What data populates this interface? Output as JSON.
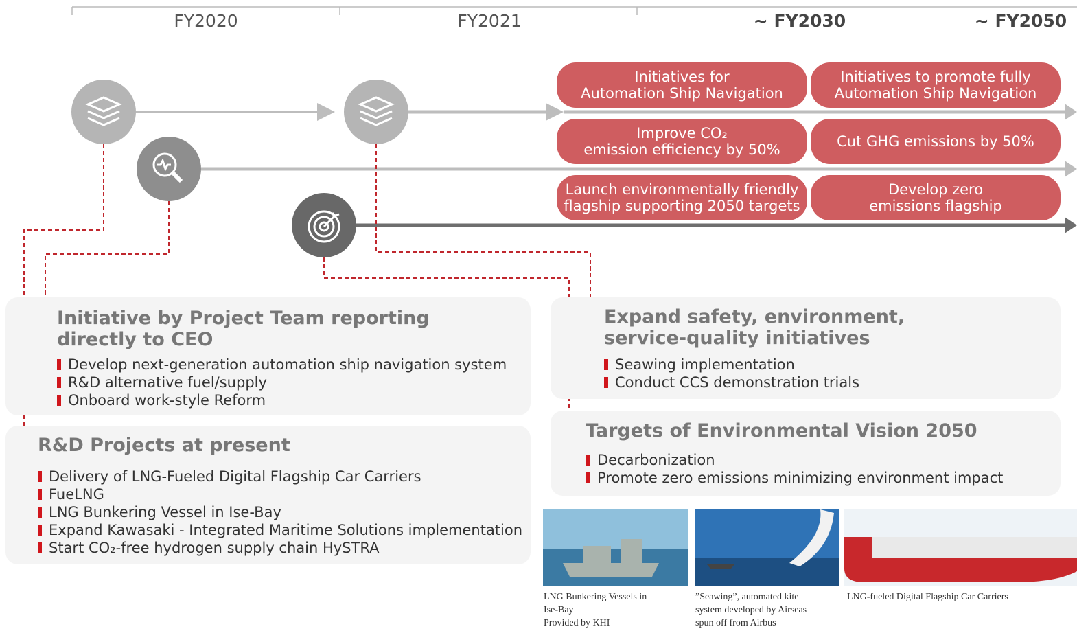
{
  "timeline": [
    "FY2020",
    "FY2021",
    "~ FY2030",
    "~ FY2050"
  ],
  "goals": [
    {
      "lines": [
        "Initiatives for",
        "Automation Ship Navigation"
      ]
    },
    {
      "lines": [
        "Initiatives to promote fully",
        "Automation Ship Navigation"
      ]
    },
    {
      "lines": [
        "Improve CO₂",
        "emission efficiency by 50%"
      ]
    },
    {
      "lines": [
        "Cut GHG emissions by 50%"
      ]
    },
    {
      "lines": [
        "Launch environmentally friendly",
        "flagship supporting 2050 targets"
      ]
    },
    {
      "lines": [
        "Develop zero",
        "emissions flagship"
      ]
    }
  ],
  "panels": [
    {
      "title": [
        "Initiative by Project Team reporting",
        "directly to CEO"
      ],
      "items": [
        "Develop next-generation automation ship navigation system",
        "R&D alternative fuel/supply",
        "Onboard work-style Reform"
      ]
    },
    {
      "title": [
        "R&D Projects at present"
      ],
      "items": [
        "Delivery of LNG-Fueled Digital Flagship Car Carriers",
        "FueLNG",
        "LNG Bunkering Vessel in Ise-Bay",
        "Expand Kawasaki - Integrated Maritime Solutions implementation",
        "Start CO₂-free hydrogen supply chain HySTRA"
      ]
    },
    {
      "title": [
        "Expand safety, environment,",
        "service-quality initiatives"
      ],
      "items": [
        "Seawing implementation",
        "Conduct CCS demonstration trials"
      ]
    },
    {
      "title": [
        "Targets of Environmental Vision 2050"
      ],
      "items": [
        "Decarbonization",
        "Promote zero emissions minimizing environment impact"
      ]
    }
  ],
  "photos": [
    {
      "caption": [
        "LNG Bunkering Vessels in",
        "Ise-Bay",
        "Provided by KHI"
      ]
    },
    {
      "caption": [
        "”Seawing”, automated kite",
        "system developed by Airseas",
        "spun off from Airbus"
      ]
    },
    {
      "caption": [
        "LNG-fueled Digital Flagship Car Carriers"
      ]
    }
  ]
}
